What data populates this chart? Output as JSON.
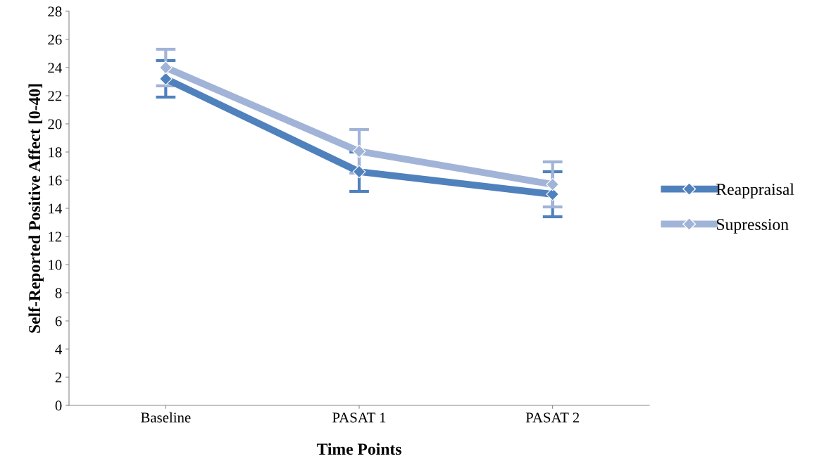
{
  "chart_data": {
    "type": "line",
    "xlabel": "Time Points",
    "ylabel": "Self-Reported Positive Affect [0-40]",
    "categories": [
      "Baseline",
      "PASAT 1",
      "PASAT 2"
    ],
    "series": [
      {
        "name": "Reappraisal",
        "color": "#4f81bd",
        "values": [
          23.2,
          16.6,
          15.0
        ],
        "errors": [
          1.3,
          1.4,
          1.6
        ]
      },
      {
        "name": "Supression",
        "color": "#a1b4d8",
        "values": [
          24.0,
          18.05,
          15.7
        ],
        "errors": [
          1.3,
          1.55,
          1.6
        ]
      }
    ],
    "ylim": [
      0,
      28
    ],
    "yticks": [
      0,
      2,
      4,
      6,
      8,
      10,
      12,
      14,
      16,
      18,
      20,
      22,
      24,
      26,
      28
    ],
    "marker": "diamond",
    "legend": "right",
    "grid": false
  }
}
